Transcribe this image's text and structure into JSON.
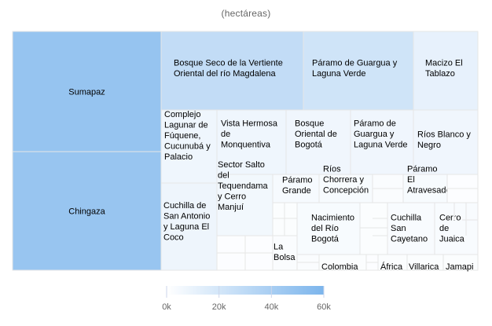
{
  "subtitle": "(hectáreas)",
  "chart_data": {
    "type": "treemap",
    "subtitle": "(hectáreas)",
    "color_axis": {
      "min": 0,
      "max": 60000,
      "ticks": [
        "0k",
        "20k",
        "40k",
        "60k"
      ],
      "min_color": "#ffffff",
      "max_color": "#7cb5ec"
    },
    "items": [
      {
        "name": "Sumapaz",
        "value": 48000
      },
      {
        "name": "Chingaza",
        "value": 47000
      },
      {
        "name": "Bosque Seco de la Vertiente Oriental del río Magdalena",
        "value": 28000
      },
      {
        "name": "Páramo de Guargua y Laguna Verde",
        "value": 22000
      },
      {
        "name": "Macizo El Tablazo",
        "value": 11000
      },
      {
        "name": "Complejo Lagunar de Fúquene, Cucunubá y Palacio",
        "value": 7500
      },
      {
        "name": "Vista Hermosa de Monquentiva",
        "value": 7500
      },
      {
        "name": "Bosque Oriental de Bogotá",
        "value": 7000
      },
      {
        "name": "Páramo de Guargua y Laguna Verde",
        "value": 7000
      },
      {
        "name": "Ríos Blanco y Negro",
        "value": 7000
      },
      {
        "name": "Cuchilla de San Antonio y Laguna El Coco",
        "value": 8000
      },
      {
        "name": "Sector Salto del Tequendama y Cerro Manjuí",
        "value": 6000
      },
      {
        "name": "Páramo Grande",
        "value": 4000
      },
      {
        "name": "Ríos Chorrera y Concepción",
        "value": 3500
      },
      {
        "name": "Páramo El Atravesado",
        "value": 3500
      },
      {
        "name": "Nacimiento del Río Bogotá",
        "value": 3500
      },
      {
        "name": "Cuchilla San Cayetano",
        "value": 3000
      },
      {
        "name": "Cerro de Juaica",
        "value": 3000
      },
      {
        "name": "La Bolsa",
        "value": 2500
      },
      {
        "name": "Colombia",
        "value": 2000
      },
      {
        "name": "África",
        "value": 1800
      },
      {
        "name": "Villarica",
        "value": 1800
      },
      {
        "name": "Jamapi",
        "value": 1800
      }
    ]
  }
}
